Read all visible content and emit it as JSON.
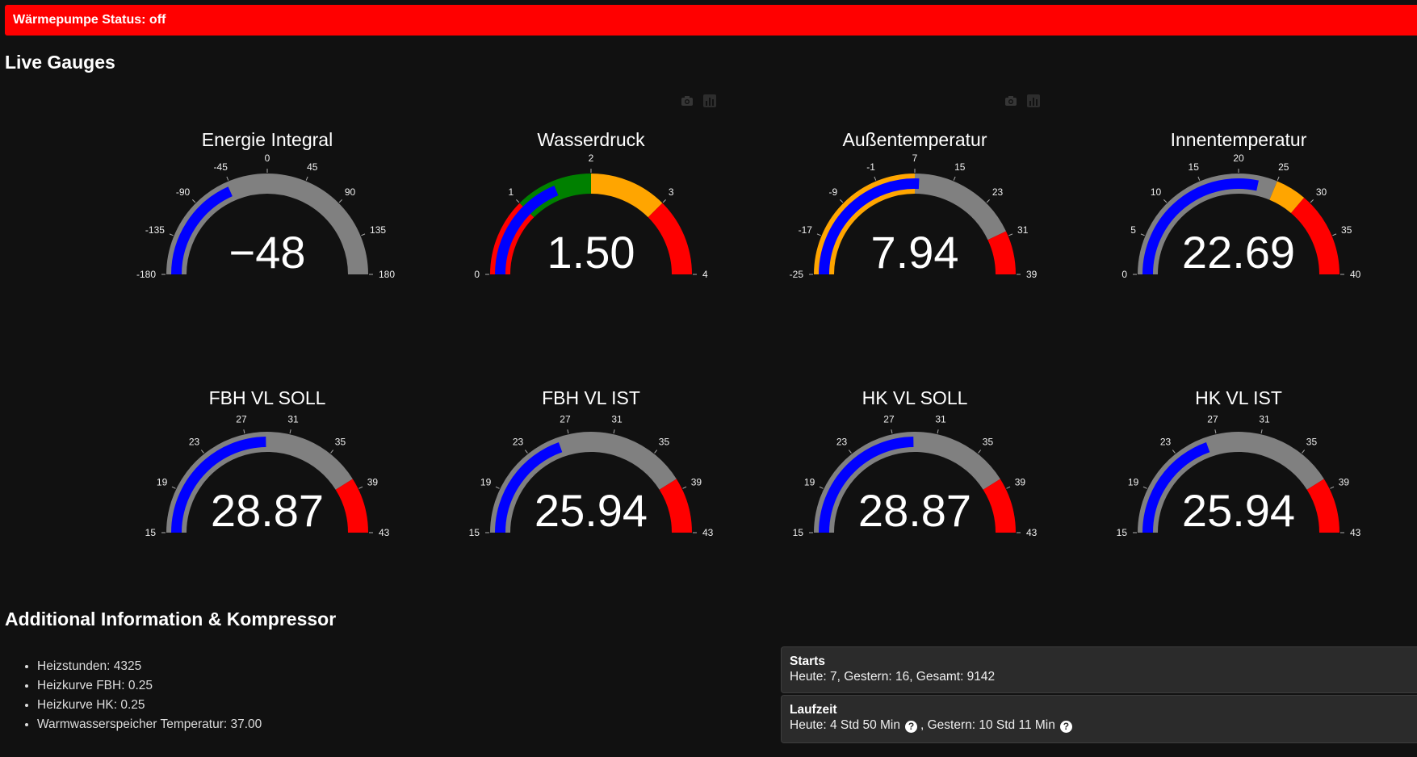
{
  "status": {
    "text": "Wärmepumpe Status: off",
    "color": "#ff0000"
  },
  "sections": {
    "gauges_title": "Live Gauges",
    "additional_title": "Additional Information & Kompressor"
  },
  "modebar_icons": [
    "camera-icon",
    "bar-chart-icon"
  ],
  "chart_data": [
    {
      "type": "gauge",
      "title": "Energie Integral",
      "value": -48,
      "display": "−48",
      "range": [
        -180,
        180
      ],
      "ticks": [
        -180,
        -135,
        -90,
        -45,
        0,
        45,
        90,
        135,
        180
      ],
      "bar_color": "#0000ff",
      "steps": [
        {
          "range": [
            -180,
            180
          ],
          "color": "#808080"
        }
      ]
    },
    {
      "type": "gauge",
      "title": "Wasserdruck",
      "value": 1.5,
      "display": "1.50",
      "range": [
        0,
        4
      ],
      "ticks": [
        0,
        1,
        2,
        3,
        4
      ],
      "bar_color": "#0000ff",
      "steps": [
        {
          "range": [
            0,
            1
          ],
          "color": "#ff0000"
        },
        {
          "range": [
            1,
            2
          ],
          "color": "#008000"
        },
        {
          "range": [
            2,
            3
          ],
          "color": "#ffa500"
        },
        {
          "range": [
            3,
            4
          ],
          "color": "#ff0000"
        }
      ]
    },
    {
      "type": "gauge",
      "title": "Außentemperatur",
      "value": 7.94,
      "display": "7.94",
      "range": [
        -25,
        39
      ],
      "ticks": [
        -25,
        -17,
        -9,
        -1,
        7,
        15,
        23,
        31,
        39
      ],
      "bar_color": "#0000ff",
      "steps": [
        {
          "range": [
            -25,
            7
          ],
          "color": "#ffa500"
        },
        {
          "range": [
            7,
            30
          ],
          "color": "#808080"
        },
        {
          "range": [
            30,
            39
          ],
          "color": "#ff0000"
        }
      ]
    },
    {
      "type": "gauge",
      "title": "Innentemperatur",
      "value": 22.69,
      "display": "22.69",
      "range": [
        0,
        40
      ],
      "ticks": [
        0,
        5,
        10,
        15,
        20,
        25,
        30,
        35,
        40
      ],
      "bar_color": "#0000ff",
      "steps": [
        {
          "range": [
            0,
            25
          ],
          "color": "#808080"
        },
        {
          "range": [
            25,
            29
          ],
          "color": "#ffa500"
        },
        {
          "range": [
            29,
            40
          ],
          "color": "#ff0000"
        }
      ]
    },
    {
      "type": "gauge",
      "title": "FBH VL SOLL",
      "value": 28.87,
      "display": "28.87",
      "range": [
        15,
        43
      ],
      "ticks": [
        15,
        19,
        23,
        27,
        31,
        35,
        39,
        43
      ],
      "bar_color": "#0000ff",
      "steps": [
        {
          "range": [
            15,
            38
          ],
          "color": "#808080"
        },
        {
          "range": [
            38,
            43
          ],
          "color": "#ff0000"
        }
      ]
    },
    {
      "type": "gauge",
      "title": "FBH VL IST",
      "value": 25.94,
      "display": "25.94",
      "range": [
        15,
        43
      ],
      "ticks": [
        15,
        19,
        23,
        27,
        31,
        35,
        39,
        43
      ],
      "bar_color": "#0000ff",
      "steps": [
        {
          "range": [
            15,
            38
          ],
          "color": "#808080"
        },
        {
          "range": [
            38,
            43
          ],
          "color": "#ff0000"
        }
      ]
    },
    {
      "type": "gauge",
      "title": "HK VL SOLL",
      "value": 28.87,
      "display": "28.87",
      "range": [
        15,
        43
      ],
      "ticks": [
        15,
        19,
        23,
        27,
        31,
        35,
        39,
        43
      ],
      "bar_color": "#0000ff",
      "steps": [
        {
          "range": [
            15,
            38
          ],
          "color": "#808080"
        },
        {
          "range": [
            38,
            43
          ],
          "color": "#ff0000"
        }
      ]
    },
    {
      "type": "gauge",
      "title": "HK VL IST",
      "value": 25.94,
      "display": "25.94",
      "range": [
        15,
        43
      ],
      "ticks": [
        15,
        19,
        23,
        27,
        31,
        35,
        39,
        43
      ],
      "bar_color": "#0000ff",
      "steps": [
        {
          "range": [
            15,
            38
          ],
          "color": "#808080"
        },
        {
          "range": [
            38,
            43
          ],
          "color": "#ff0000"
        }
      ]
    }
  ],
  "info_list": [
    "Heizstunden: 4325",
    "Heizkurve FBH: 0.25",
    "Heizkurve HK: 0.25",
    "Warmwasserspeicher Temperatur: 37.00"
  ],
  "kompressor": {
    "starts": {
      "title": "Starts",
      "text": "Heute: 7, Gestern: 16, Gesamt: 9142"
    },
    "laufzeit": {
      "title": "Laufzeit",
      "today": "Heute: 4 Std 50 Min",
      "separator": ", Gestern: 10 Std 11 Min",
      "help_glyph": "?"
    }
  }
}
